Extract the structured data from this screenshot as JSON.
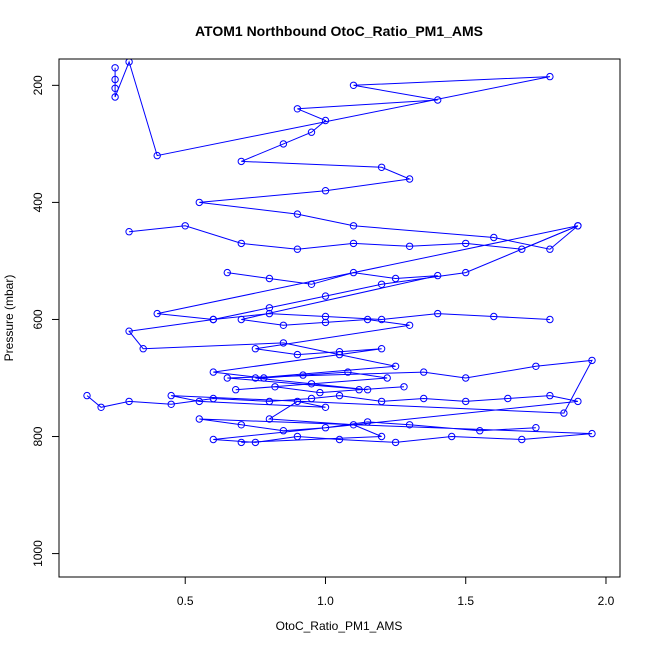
{
  "chart_data": {
    "type": "scatter",
    "title": "ATOM1 Northbound OtoC_Ratio_PM1_AMS",
    "xlabel": "OtoC_Ratio_PM1_AMS",
    "ylabel": "Pressure (mbar)",
    "xlim": [
      0.05,
      2.05
    ],
    "ylim": [
      1040,
      155
    ],
    "y_reversed": true,
    "xticks": [
      0.5,
      1.0,
      1.5,
      2.0
    ],
    "xtick_labels": [
      "0.5",
      "1.0",
      "1.5",
      "2.0"
    ],
    "yticks": [
      200,
      400,
      600,
      800,
      1000
    ],
    "ytick_labels": [
      "200",
      "400",
      "600",
      "800",
      "1000"
    ],
    "grid": false,
    "legend": "none",
    "marker": "open-circle",
    "connect_points": true,
    "color": "#0000ff",
    "series": [
      {
        "x": [
          0.25,
          0.25,
          0.25,
          0.25,
          0.3,
          0.4,
          1.8,
          1.1,
          1.4,
          0.9,
          1.0,
          0.95,
          0.85,
          0.7,
          1.2,
          1.3,
          1.0,
          0.55,
          0.9,
          1.1,
          1.6,
          1.8,
          1.9,
          1.5,
          1.2,
          1.0,
          0.8,
          0.6,
          0.3,
          0.35,
          0.85,
          1.05,
          1.25,
          0.75,
          0.95,
          1.15,
          0.65,
          1.35,
          1.5,
          1.75,
          1.95,
          1.85,
          0.45,
          0.55,
          1.0,
          0.9,
          0.8,
          1.1,
          1.2,
          0.7
        ],
        "y": [
          170,
          190,
          205,
          220,
          160,
          320,
          185,
          200,
          225,
          240,
          260,
          280,
          300,
          330,
          340,
          360,
          380,
          400,
          420,
          440,
          460,
          480,
          440,
          520,
          540,
          560,
          580,
          600,
          620,
          650,
          640,
          660,
          680,
          700,
          710,
          720,
          700,
          690,
          700,
          680,
          670,
          760,
          730,
          740,
          750,
          740,
          770,
          780,
          800,
          810
        ]
      },
      {
        "x": [
          0.15,
          0.2,
          0.3,
          0.45,
          0.6,
          0.8,
          0.95,
          1.05,
          1.2,
          1.35,
          1.5,
          1.65,
          1.8,
          1.9,
          0.6,
          0.75,
          0.9,
          1.05,
          1.25,
          1.45,
          1.7,
          1.95,
          0.55,
          0.7,
          0.85,
          1.0,
          1.15,
          1.3,
          1.55,
          1.75
        ],
        "y": [
          730,
          750,
          740,
          745,
          735,
          740,
          735,
          730,
          740,
          735,
          740,
          735,
          730,
          740,
          805,
          810,
          800,
          805,
          810,
          800,
          805,
          795,
          770,
          780,
          790,
          785,
          775,
          780,
          790,
          785
        ]
      },
      {
        "x": [
          0.65,
          0.8,
          0.95,
          1.1,
          1.25,
          1.4,
          0.7,
          0.85,
          1.0,
          1.15,
          1.3,
          0.75,
          0.9,
          1.05,
          1.2,
          0.6,
          0.78,
          0.92,
          1.08,
          1.22,
          0.68,
          0.82,
          0.98,
          1.12,
          1.28
        ],
        "y": [
          520,
          530,
          540,
          520,
          530,
          525,
          600,
          610,
          605,
          600,
          610,
          650,
          660,
          655,
          650,
          690,
          700,
          695,
          690,
          700,
          720,
          715,
          725,
          720,
          715
        ]
      },
      {
        "x": [
          0.3,
          0.5,
          0.7,
          0.9,
          1.1,
          1.3,
          1.5,
          1.7,
          1.9,
          0.4,
          0.6,
          0.8,
          1.0,
          1.2,
          1.4,
          1.6,
          1.8
        ],
        "y": [
          450,
          440,
          470,
          480,
          470,
          475,
          470,
          480,
          440,
          590,
          600,
          590,
          595,
          600,
          590,
          595,
          600
        ]
      }
    ]
  }
}
